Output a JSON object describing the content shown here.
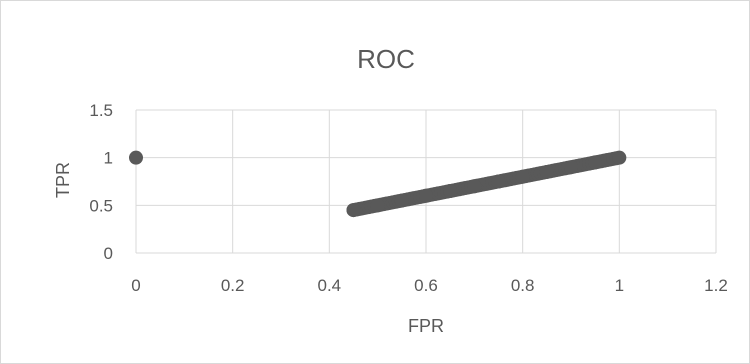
{
  "chart_data": {
    "type": "scatter",
    "title": "ROC",
    "xlabel": "FPR",
    "ylabel": "TPR",
    "xlim": [
      0,
      1.2
    ],
    "ylim": [
      0,
      1.5
    ],
    "x_ticks": [
      "0",
      "0.2",
      "0.4",
      "0.6",
      "0.8",
      "1",
      "1.2"
    ],
    "y_ticks": [
      "0",
      "0.5",
      "1",
      "1.5"
    ],
    "grid": true,
    "legend": "none",
    "marker_color": "#595959",
    "series": [
      {
        "points": [
          {
            "x": 0,
            "y": 1
          },
          {
            "x": 0.45,
            "y": 0.45
          },
          {
            "x": 0.5,
            "y": 0.5
          },
          {
            "x": 0.55,
            "y": 0.55
          },
          {
            "x": 0.6,
            "y": 0.6
          },
          {
            "x": 0.65,
            "y": 0.65
          },
          {
            "x": 0.7,
            "y": 0.7
          },
          {
            "x": 0.75,
            "y": 0.75
          },
          {
            "x": 0.8,
            "y": 0.8
          },
          {
            "x": 0.85,
            "y": 0.85
          },
          {
            "x": 0.9,
            "y": 0.9
          },
          {
            "x": 0.95,
            "y": 0.95
          },
          {
            "x": 1,
            "y": 1
          }
        ]
      }
    ]
  }
}
